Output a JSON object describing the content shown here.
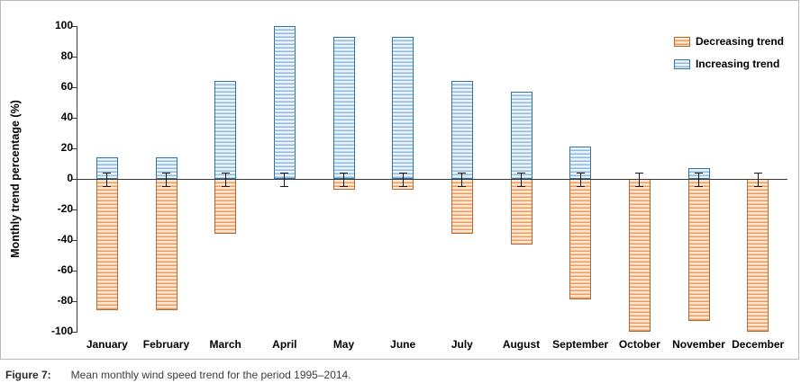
{
  "figure": {
    "caption_label": "Figure 7:",
    "caption_text": "Mean monthly wind speed trend for the period 1995–2014."
  },
  "chart_data": {
    "type": "bar",
    "title": "",
    "xlabel": "",
    "ylabel": "Monthly trend percentage (%)",
    "ylim": [
      -100,
      100
    ],
    "ytick_step": 20,
    "grid": false,
    "legend_position": "top-right",
    "error_bar_extent": 4,
    "categories": [
      "January",
      "February",
      "March",
      "April",
      "May",
      "June",
      "July",
      "August",
      "September",
      "October",
      "November",
      "December"
    ],
    "series": [
      {
        "name": "Decreasing trend",
        "values": [
          -86,
          -86,
          -36,
          0,
          -7,
          -7,
          -36,
          -43,
          -79,
          -100,
          -93,
          -100
        ],
        "line_color": "#EC9A5F",
        "bg_color": "#FBE8D3",
        "border_color": "#B26A32"
      },
      {
        "name": "Increasing trend",
        "values": [
          14,
          14,
          64,
          100,
          93,
          93,
          64,
          57,
          21,
          0,
          7,
          0
        ],
        "line_color": "#8FBADB",
        "bg_color": "#EAF3FA",
        "border_color": "#34749E"
      }
    ]
  }
}
